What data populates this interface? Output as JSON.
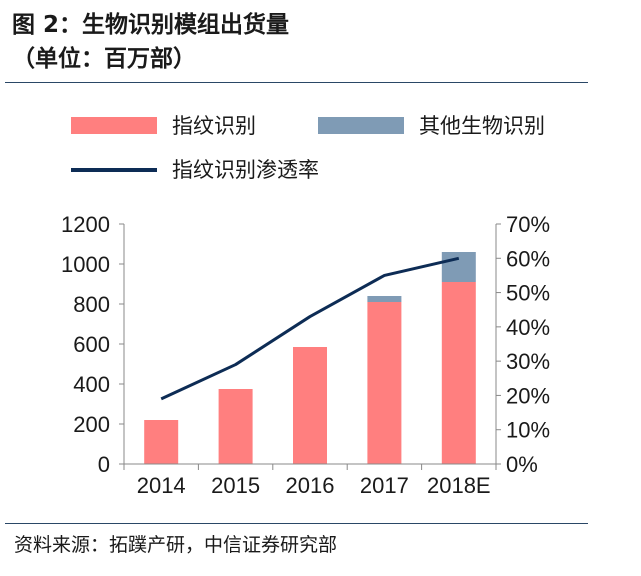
{
  "figure": {
    "title_line1": "图 2：生物识别模组出货量",
    "title_line2": "（单位：百万部）",
    "source": "资料来源：拓蹼产研，中信证券研究部"
  },
  "colors": {
    "fingerprint_bar": "#ff7f7f",
    "other_bar": "#7f9bb5",
    "penetration_line": "#0d2c55",
    "axis": "#888888",
    "rule": "#2a4766"
  },
  "chart_data": {
    "type": "bar",
    "stacked": true,
    "categories": [
      "2014",
      "2015",
      "2016",
      "2017",
      "2018E"
    ],
    "series": [
      {
        "name": "指纹识别",
        "values": [
          220,
          375,
          585,
          810,
          910
        ]
      },
      {
        "name": "其他生物识别",
        "values": [
          0,
          0,
          0,
          30,
          150
        ]
      }
    ],
    "line_series": [
      {
        "name": "指纹识别渗透率",
        "axis": "right",
        "values": [
          0.19,
          0.29,
          0.43,
          0.55,
          0.6
        ]
      }
    ],
    "ylim": [
      0,
      1200
    ],
    "yticks": [
      "0",
      "200",
      "400",
      "600",
      "800",
      "1000",
      "1200"
    ],
    "y2lim": [
      0,
      0.7
    ],
    "y2ticks": [
      "0%",
      "10%",
      "20%",
      "30%",
      "40%",
      "50%",
      "60%",
      "70%"
    ],
    "xlabel": "",
    "ylabel": "",
    "legend_position": "top",
    "grid": false
  }
}
